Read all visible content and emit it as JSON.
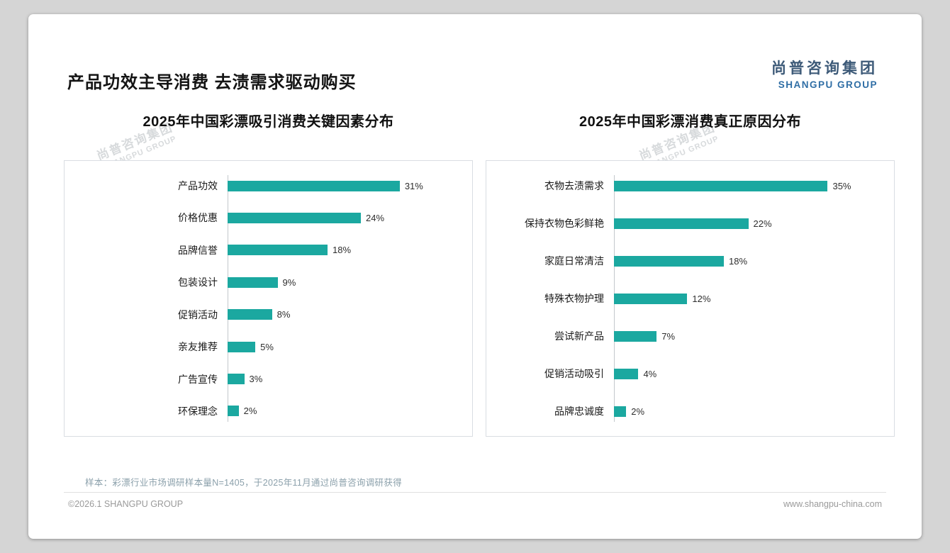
{
  "slide": {
    "title": "产品功效主导消费 去渍需求驱动购买",
    "logo": {
      "cn": "尚普咨询集团",
      "en": "SHANGPU GROUP"
    },
    "watermark": {
      "cn": "尚普咨询集团",
      "en": "SHANGPU GROUP"
    },
    "note": "样本：彩漂行业市场调研样本量N=1405，于2025年11月通过尚普咨询调研获得",
    "footer": {
      "copyright": "©2026.1 SHANGPU GROUP",
      "website": "www.shangpu-china.com"
    }
  },
  "colors": {
    "accent": "#1BA8A0",
    "logo_cn": "#3D5A78",
    "logo_en": "#2F6EA5",
    "note_text": "#8BA0AB",
    "footer_text": "#9A9A9A"
  },
  "chart_data": [
    {
      "type": "bar",
      "orientation": "horizontal",
      "title": "2025年中国彩漂吸引消费关键因素分布",
      "categories": [
        "产品功效",
        "价格优惠",
        "品牌信誉",
        "包装设计",
        "促销活动",
        "亲友推荐",
        "广告宣传",
        "环保理念"
      ],
      "values": [
        31,
        24,
        18,
        9,
        8,
        5,
        3,
        2
      ],
      "unit": "%",
      "value_labels": [
        "31%",
        "24%",
        "18%",
        "9%",
        "8%",
        "5%",
        "3%",
        "2%"
      ],
      "xlim": [
        0,
        42
      ],
      "grid": false,
      "legend": false,
      "bar_color": "#1BA8A0"
    },
    {
      "type": "bar",
      "orientation": "horizontal",
      "title": "2025年中国彩漂消费真正原因分布",
      "categories": [
        "衣物去渍需求",
        "保持衣物色彩鲜艳",
        "家庭日常清洁",
        "特殊衣物护理",
        "尝试新产品",
        "促销活动吸引",
        "品牌忠诚度"
      ],
      "values": [
        35,
        22,
        18,
        12,
        7,
        4,
        2
      ],
      "unit": "%",
      "value_labels": [
        "35%",
        "22%",
        "18%",
        "12%",
        "7%",
        "4%",
        "2%"
      ],
      "xlim": [
        0,
        44
      ],
      "grid": false,
      "legend": false,
      "bar_color": "#1BA8A0"
    }
  ]
}
